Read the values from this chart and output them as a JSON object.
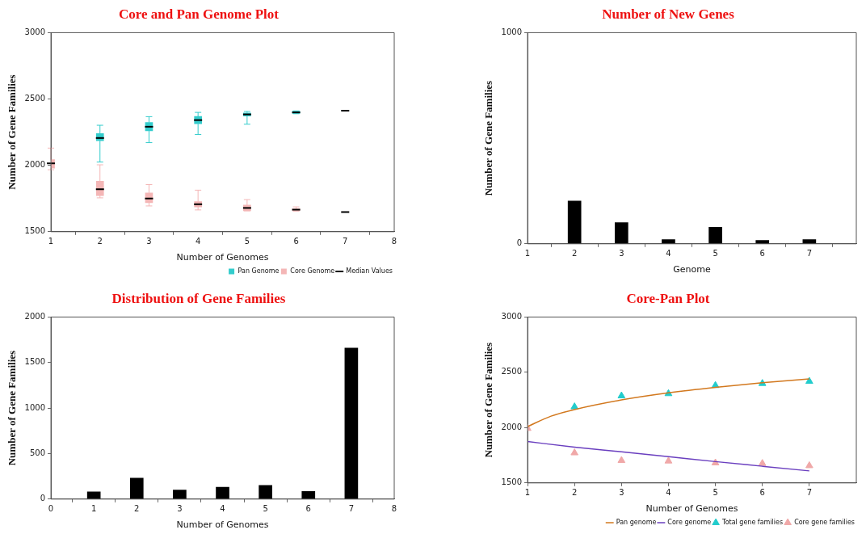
{
  "chart_data": [
    {
      "type": "box",
      "title": "Core and Pan Genome Plot",
      "annotations": [
        "Median Values"
      ],
      "xlabel": "Number of Genomes",
      "ylabel": "Number of Gene Families",
      "categories": [
        "1",
        "2",
        "3",
        "4",
        "5",
        "6",
        "7",
        "8"
      ],
      "ylim": [
        1500,
        3000
      ],
      "yticks": [
        1500,
        2000,
        2500,
        3000
      ],
      "grid": false,
      "legend": "bottom right",
      "series": [
        {
          "name": "Pan Genome",
          "color": "#33cccc",
          "boxes": [
            null,
            {
              "low": 2025,
              "q1": 2185,
              "median": 2206,
              "q3": 2239,
              "high": 2302
            },
            {
              "low": 2171,
              "q1": 2260,
              "median": 2291,
              "q3": 2323,
              "high": 2367
            },
            {
              "low": 2232,
              "q1": 2313,
              "median": 2341,
              "q3": 2369,
              "high": 2399
            },
            {
              "low": 2310,
              "q1": 2371,
              "median": 2384,
              "q3": 2395,
              "high": 2406
            },
            {
              "low": 2389,
              "q1": 2391,
              "median": 2399,
              "q3": 2408,
              "high": 2410
            },
            {
              "low": 2412,
              "q1": 2412,
              "median": 2412,
              "q3": 2412,
              "high": 2412
            },
            null
          ]
        },
        {
          "name": "Core Genome",
          "color": "#f4b6b6",
          "boxes": [
            {
              "low": 1967,
              "q1": 1978,
              "median": 2015,
              "q3": 2043,
              "high": 2130
            },
            {
              "low": 1755,
              "q1": 1772,
              "median": 1820,
              "q3": 1881,
              "high": 2004
            },
            {
              "low": 1694,
              "q1": 1718,
              "median": 1750,
              "q3": 1792,
              "high": 1855
            },
            {
              "low": 1664,
              "q1": 1687,
              "median": 1707,
              "q3": 1727,
              "high": 1813
            },
            {
              "low": 1657,
              "q1": 1657,
              "median": 1679,
              "q3": 1700,
              "high": 1742
            },
            {
              "low": 1655,
              "q1": 1657,
              "median": 1666,
              "q3": 1674,
              "high": 1687
            },
            {
              "low": 1648,
              "q1": 1648,
              "median": 1648,
              "q3": 1648,
              "high": 1648
            },
            null
          ]
        }
      ]
    },
    {
      "type": "bar",
      "title": "Number of New Genes",
      "xlabel": "Genome",
      "ylabel": "Number of Gene Families",
      "x": [
        2,
        3,
        4,
        5,
        6,
        7
      ],
      "values": [
        203,
        100,
        20,
        78,
        16,
        20
      ],
      "color": "#000000",
      "xlim": [
        1,
        8
      ],
      "xticks": [
        1,
        2,
        3,
        4,
        5,
        6,
        7
      ],
      "ylim": [
        0,
        1000
      ],
      "yticks": [
        0,
        1000
      ],
      "grid": false
    },
    {
      "type": "bar",
      "title": "Distribution of Gene Families",
      "xlabel": "Number of Genomes",
      "ylabel": "Number of Gene Families",
      "x": [
        1,
        2,
        3,
        4,
        5,
        6,
        7
      ],
      "values": [
        80,
        230,
        100,
        130,
        150,
        85,
        1660
      ],
      "color": "#000000",
      "xlim": [
        0,
        8
      ],
      "xticks": [
        0,
        1,
        2,
        3,
        4,
        5,
        6,
        7,
        8
      ],
      "ylim": [
        0,
        2000
      ],
      "yticks": [
        0,
        500,
        1000,
        1500,
        2000
      ],
      "grid": false
    },
    {
      "type": "line",
      "title": "Core-Pan Plot",
      "xlabel": "Number of Genomes",
      "ylabel": "Number of Gene Families",
      "xlim": [
        1,
        8
      ],
      "xticks": [
        1,
        2,
        3,
        4,
        5,
        6,
        7
      ],
      "ylim": [
        1500,
        3000
      ],
      "yticks": [
        1500,
        2000,
        2500,
        3000
      ],
      "grid": false,
      "legend": "bottom right",
      "series": [
        {
          "name": "Pan genome",
          "color": "#d2781e",
          "x": [
            1,
            1.5,
            2,
            3,
            4,
            5,
            6,
            7
          ],
          "values": [
            2010,
            2104,
            2163,
            2250,
            2314,
            2364,
            2406,
            2441
          ]
        },
        {
          "name": "Core genome",
          "color": "#6a3fbf",
          "x": [
            1,
            2,
            3,
            4,
            5,
            6,
            7
          ],
          "values": [
            1874,
            1824,
            1782,
            1738,
            1693,
            1651,
            1609
          ]
        },
        {
          "name": "Total gene families",
          "color": "#22cccc",
          "type": "scatter",
          "marker": "triangle",
          "x": [
            2,
            3,
            4,
            5,
            6,
            7
          ],
          "values": [
            2188,
            2287,
            2307,
            2381,
            2399,
            2418
          ]
        },
        {
          "name": "Core gene families",
          "color": "#f0a8a8",
          "type": "scatter",
          "marker": "triangle",
          "x": [
            1,
            2,
            3,
            4,
            5,
            6,
            7
          ],
          "values": [
            1993,
            1772,
            1703,
            1698,
            1681,
            1676,
            1656
          ]
        }
      ]
    }
  ]
}
